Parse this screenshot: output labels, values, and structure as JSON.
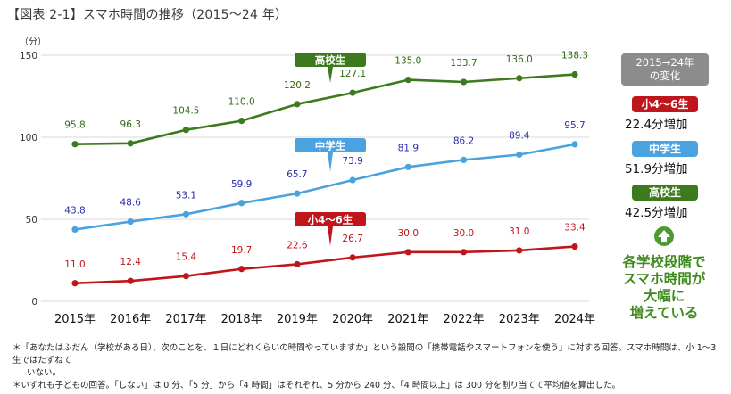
{
  "title": "【図表 2-1】スマホ時間の推移（2015～24 年）",
  "chart_data": {
    "type": "line",
    "ylabel": "（分）",
    "ylim": [
      0,
      150
    ],
    "yticks": [
      0,
      50,
      100,
      150
    ],
    "x": [
      "2015年",
      "2016年",
      "2017年",
      "2018年",
      "2019年",
      "2020年",
      "2021年",
      "2022年",
      "2023年",
      "2024年"
    ],
    "series": [
      {
        "name": "高校生",
        "color": "#3d7a1d",
        "labelColor": "#2e6b12",
        "values": [
          95.8,
          96.3,
          104.5,
          110.0,
          120.2,
          127.1,
          135.0,
          133.7,
          136.0,
          138.3
        ],
        "labels": [
          "95.8",
          "96.3",
          "104.5",
          "110.0",
          "120.2",
          "127.1",
          "135.0",
          "133.7",
          "136.0",
          "138.3"
        ]
      },
      {
        "name": "中学生",
        "color": "#4aa3df",
        "labelColor": "#2a2aa8",
        "values": [
          43.8,
          48.6,
          53.1,
          59.9,
          65.7,
          73.9,
          81.9,
          86.2,
          89.4,
          95.7
        ],
        "labels": [
          "43.8",
          "48.6",
          "53.1",
          "59.9",
          "65.7",
          "73.9",
          "81.9",
          "86.2",
          "89.4",
          "95.7"
        ]
      },
      {
        "name": "小4～6生",
        "color": "#c0151b",
        "labelColor": "#c0151b",
        "values": [
          11.0,
          12.4,
          15.4,
          19.7,
          22.6,
          26.7,
          30.0,
          30.0,
          31.0,
          33.4
        ],
        "labels": [
          "11.0",
          "12.4",
          "15.4",
          "19.7",
          "22.6",
          "26.7",
          "30.0",
          "30.0",
          "31.0",
          "33.4"
        ]
      }
    ]
  },
  "comparison": {
    "header_line1": "2015→24年",
    "header_line2": "の変化",
    "items": [
      {
        "label": "小4～6生",
        "change": "22.4分増加",
        "color": "#c0151b"
      },
      {
        "label": "中学生",
        "change": "51.9分増加",
        "color": "#4aa3df"
      },
      {
        "label": "高校生",
        "change": "42.5分増加",
        "color": "#3d7a1d"
      }
    ],
    "arrow_icon": "up-arrow-icon",
    "conclusion": [
      "各学校段階で",
      "スマホ時間が",
      "大幅に",
      "増えている"
    ]
  },
  "notes": [
    "＊「あなたはふだん（学校がある日）、次のことを、１日にどれくらいの時間やっていますか」という設問の「携帯電話やスマートフォンを使う」に対する回答。スマホ時間は、小 1～3 生ではたずねて",
    "いない。",
    "＊いずれも子どもの回答。「しない」は 0 分、「5 分」から「4 時間」はそれぞれ、5 分から 240 分、「4 時間以上」は 300 分を割り当てて平均値を算出した。"
  ]
}
